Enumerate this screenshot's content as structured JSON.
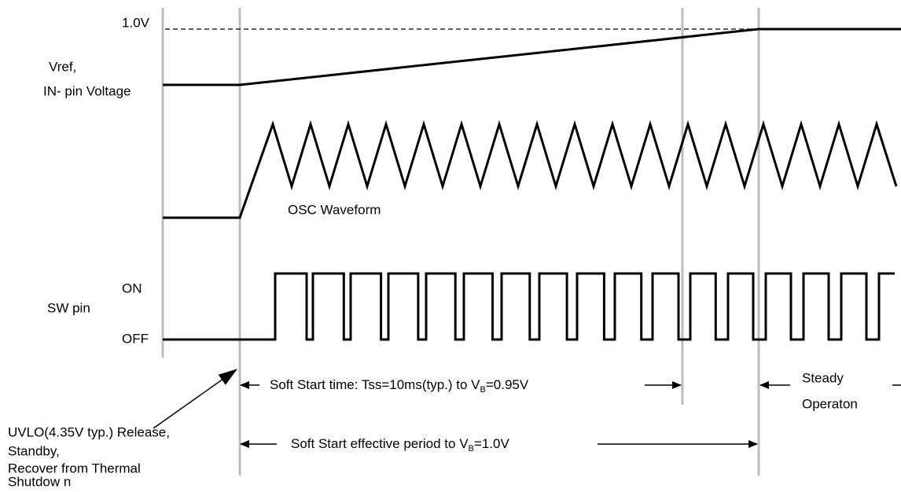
{
  "labels": {
    "vref_level": "1.0V",
    "vref_line1": "Vref,",
    "vref_line2": "IN- pin Voltage",
    "osc": "OSC Waveform",
    "sw_on": "ON",
    "sw_pin": "SW pin",
    "sw_off": "OFF"
  },
  "soft_start_time": {
    "prefix": "Soft Start time: Tss=10ms(typ.)  to V",
    "sub": "B",
    "suffix": "=0.95V"
  },
  "soft_start_effective": {
    "prefix": "Soft Start effective period to V",
    "sub": "B",
    "suffix": "=1.0V"
  },
  "steady": [
    "Steady",
    "Operaton"
  ],
  "uvlo_note": [
    "UVLO(4.35V typ.) Release,",
    "Standby,",
    "Recover from Thermal",
    "Shutdow n"
  ]
}
